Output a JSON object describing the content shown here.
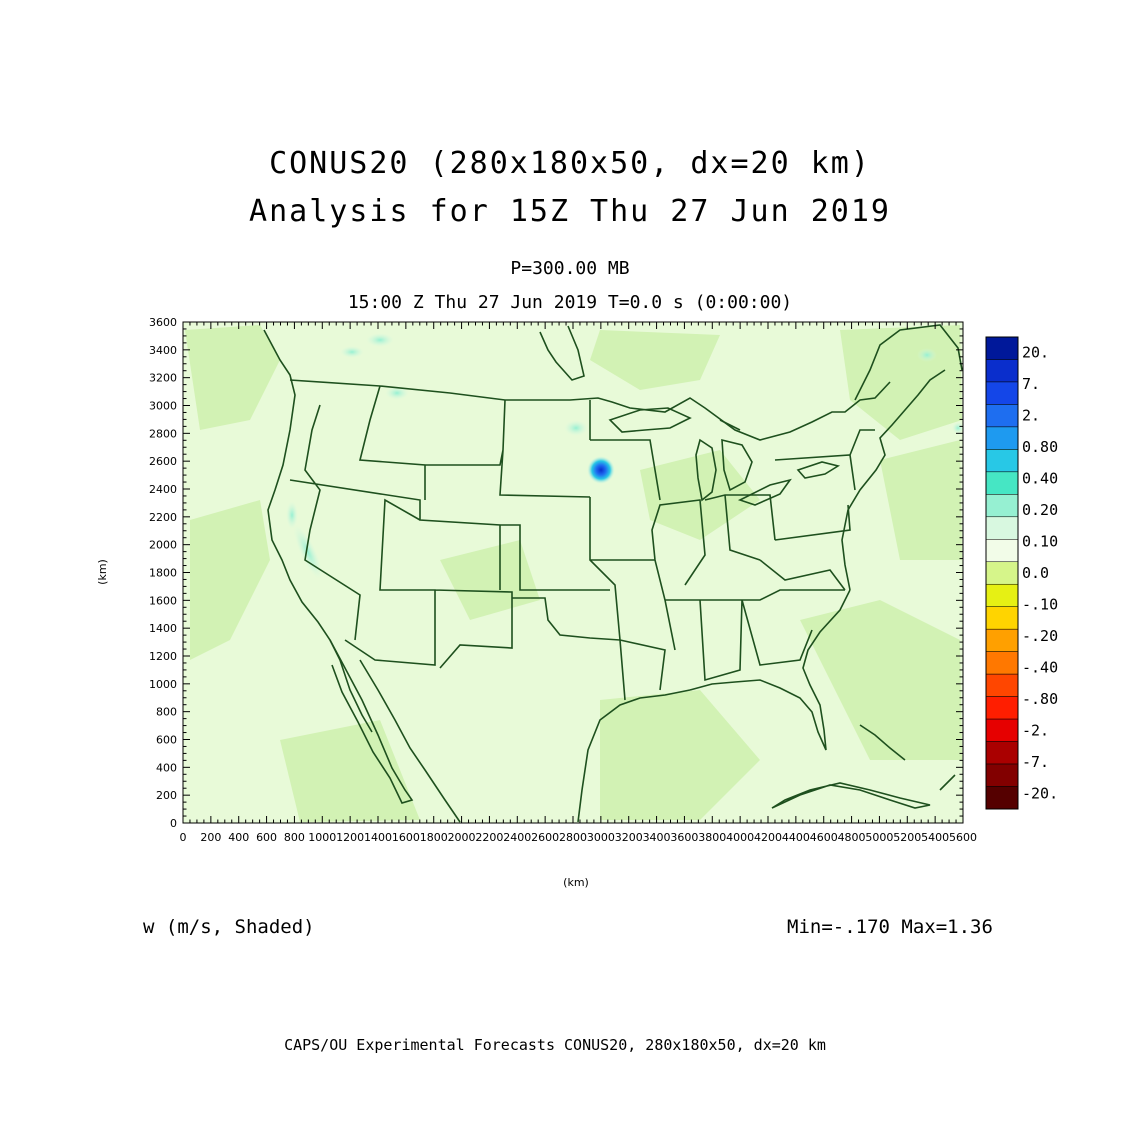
{
  "title": "CONUS20 (280x180x50, dx=20 km)",
  "subtitle": "Analysis for 15Z Thu 27 Jun 2019",
  "level_label": "P=300.00 MB",
  "time_label": "15:00 Z Thu 27 Jun 2019   T=0.0 s (0:00:00)",
  "variable_label": "w (m/s, Shaded)",
  "minmax_label": "Min=-.170 Max=1.36",
  "footer": "CAPS/OU Experimental Forecasts  CONUS20, 280x180x50, dx=20 km",
  "axes": {
    "x_label": "(km)",
    "y_label": "(km)",
    "x_range": [
      0,
      5600
    ],
    "y_range": [
      0,
      3600
    ],
    "x_ticks": [
      "0",
      "200",
      "400",
      "600",
      "800",
      "1000",
      "1200",
      "1400",
      "1600",
      "1800",
      "2000",
      "2200",
      "2400",
      "2600",
      "2800",
      "3000",
      "3200",
      "3400",
      "3600",
      "3800",
      "4000",
      "4200",
      "4400",
      "4600",
      "4800",
      "5000",
      "5200",
      "5400",
      "5600"
    ],
    "y_ticks": [
      "0",
      "200",
      "400",
      "600",
      "800",
      "1000",
      "1200",
      "1400",
      "1600",
      "1800",
      "2000",
      "2200",
      "2400",
      "2600",
      "2800",
      "3000",
      "3200",
      "3400",
      "3600"
    ]
  },
  "colorbar": {
    "labels": [
      "20.",
      "7.",
      "2.",
      "0.80",
      "0.40",
      "0.20",
      "0.10",
      "0.0",
      "-.10",
      "-.20",
      "-.40",
      "-.80",
      "-2.",
      "-7.",
      "-20."
    ],
    "colors": [
      "#00189a",
      "#0a2ecc",
      "#1446e8",
      "#1e6ef0",
      "#1e9af0",
      "#28c8e6",
      "#46e6c4",
      "#96f0d2",
      "#d8f8e0",
      "#f2fce8",
      "#d6f58a",
      "#e6f014",
      "#ffd400",
      "#ffa000",
      "#ff7800",
      "#ff4600",
      "#ff1e00",
      "#e60000",
      "#aa0000",
      "#820000",
      "#550000"
    ]
  },
  "colors": {
    "map_background": "#e8fad8",
    "light_green": "#d2f2b4",
    "boundary": "#1e501e"
  },
  "chart_data": {
    "type": "heatmap",
    "title": "CONUS20 (280x180x50, dx=20 km)",
    "xlabel": "(km)",
    "ylabel": "(km)",
    "xlim": [
      0,
      5600
    ],
    "ylim": [
      0,
      3600
    ],
    "min": -0.17,
    "max": 1.36,
    "features": [
      {
        "name": "max updraft",
        "x": 3000,
        "y": 2550,
        "value": 1.36
      },
      {
        "name": "weak updraft",
        "x": 2800,
        "y": 2850,
        "value": 0.2
      },
      {
        "name": "weak updraft",
        "x": 1550,
        "y": 3030,
        "value": 0.1
      },
      {
        "name": "weak updraft",
        "x": 1350,
        "y": 3250,
        "value": 0.1
      },
      {
        "name": "weak updraft",
        "x": 1400,
        "y": 3450,
        "value": 0.1
      },
      {
        "name": "weak updraft",
        "x": 850,
        "y": 1950,
        "value": 0.2
      },
      {
        "name": "weak updraft",
        "x": 800,
        "y": 2200,
        "value": 0.1
      },
      {
        "name": "weak updraft",
        "x": 5400,
        "y": 3350,
        "value": 0.1
      }
    ]
  }
}
